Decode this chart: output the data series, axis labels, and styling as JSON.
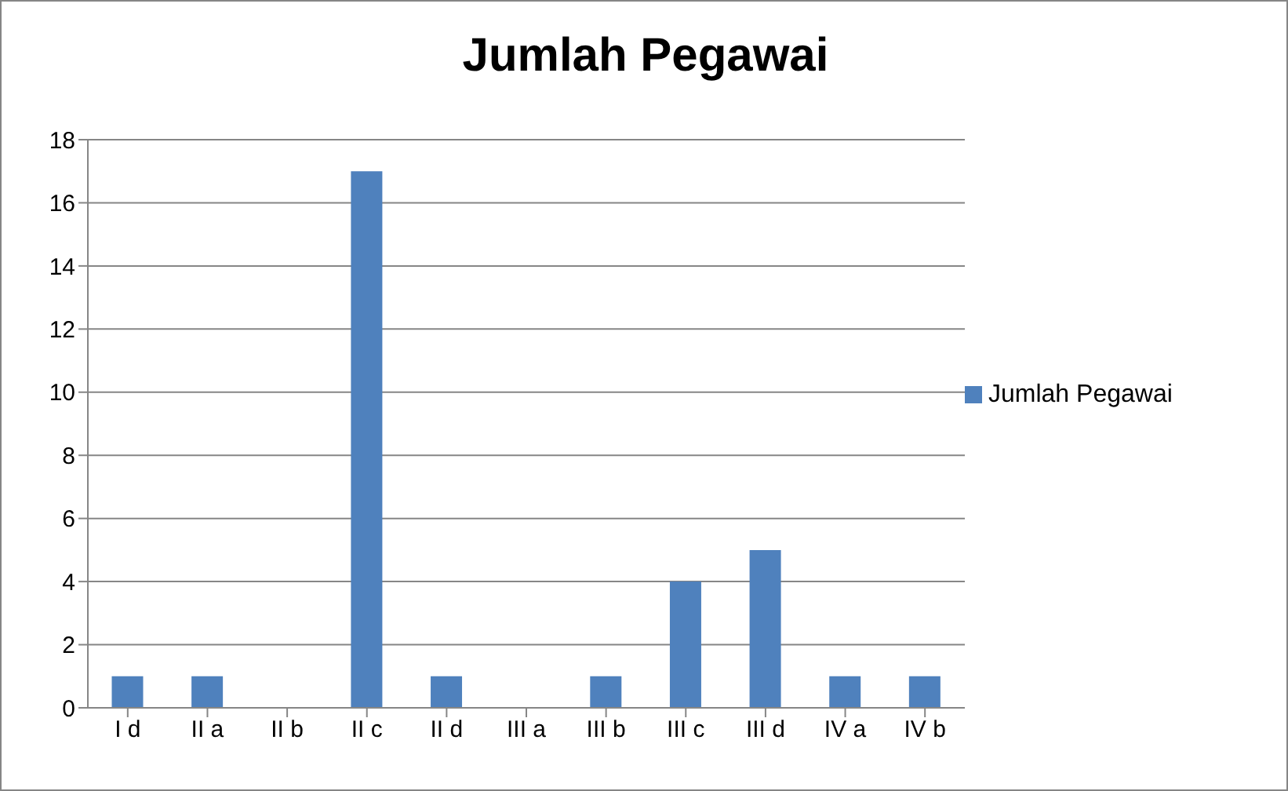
{
  "chart_data": {
    "type": "bar",
    "title": "Jumlah Pegawai",
    "categories": [
      "I d",
      "II a",
      "II b",
      "II c",
      "II d",
      "III a",
      "III b",
      "III c",
      "III d",
      "IV a",
      "IV b"
    ],
    "series": [
      {
        "name": "Jumlah Pegawai",
        "color": "#4f81bd",
        "values": [
          1,
          1,
          0,
          17,
          1,
          0,
          1,
          4,
          5,
          1,
          1
        ]
      }
    ],
    "ylim": [
      0,
      18
    ],
    "yticks": [
      0,
      2,
      4,
      6,
      8,
      10,
      12,
      14,
      16,
      18
    ],
    "grid": "y",
    "legend": "right"
  }
}
